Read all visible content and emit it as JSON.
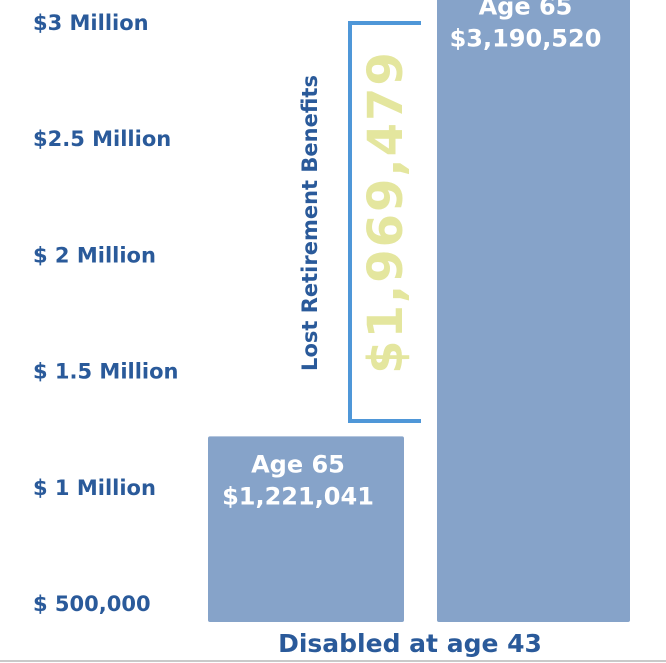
{
  "chart_data": {
    "type": "bar",
    "title": "",
    "xlabel": "Disabled at age 43",
    "ylabel": "",
    "y_tick_labels": [
      "$ 500,000",
      "$ 1 Million",
      "$ 1.5 Million",
      "$ 2 Million",
      "$2.5 Million",
      "$3 Million"
    ],
    "y_ticks": [
      500000,
      1000000,
      1500000,
      2000000,
      2500000,
      3000000
    ],
    "ylim": [
      500000,
      3000000
    ],
    "categories": [
      "",
      ""
    ],
    "values": [
      1221041,
      3190520
    ],
    "bar_labels": [
      [
        "Age 65",
        "$1,221,041"
      ],
      [
        "Age 65",
        "$3,190,520"
      ]
    ],
    "bar_color": "#86a3c9",
    "difference": {
      "label": "Lost Retirement Benefits",
      "value_text": "$1,969,479",
      "bracket_color": "#4f97d8",
      "value_color": "#e4e69e"
    }
  }
}
